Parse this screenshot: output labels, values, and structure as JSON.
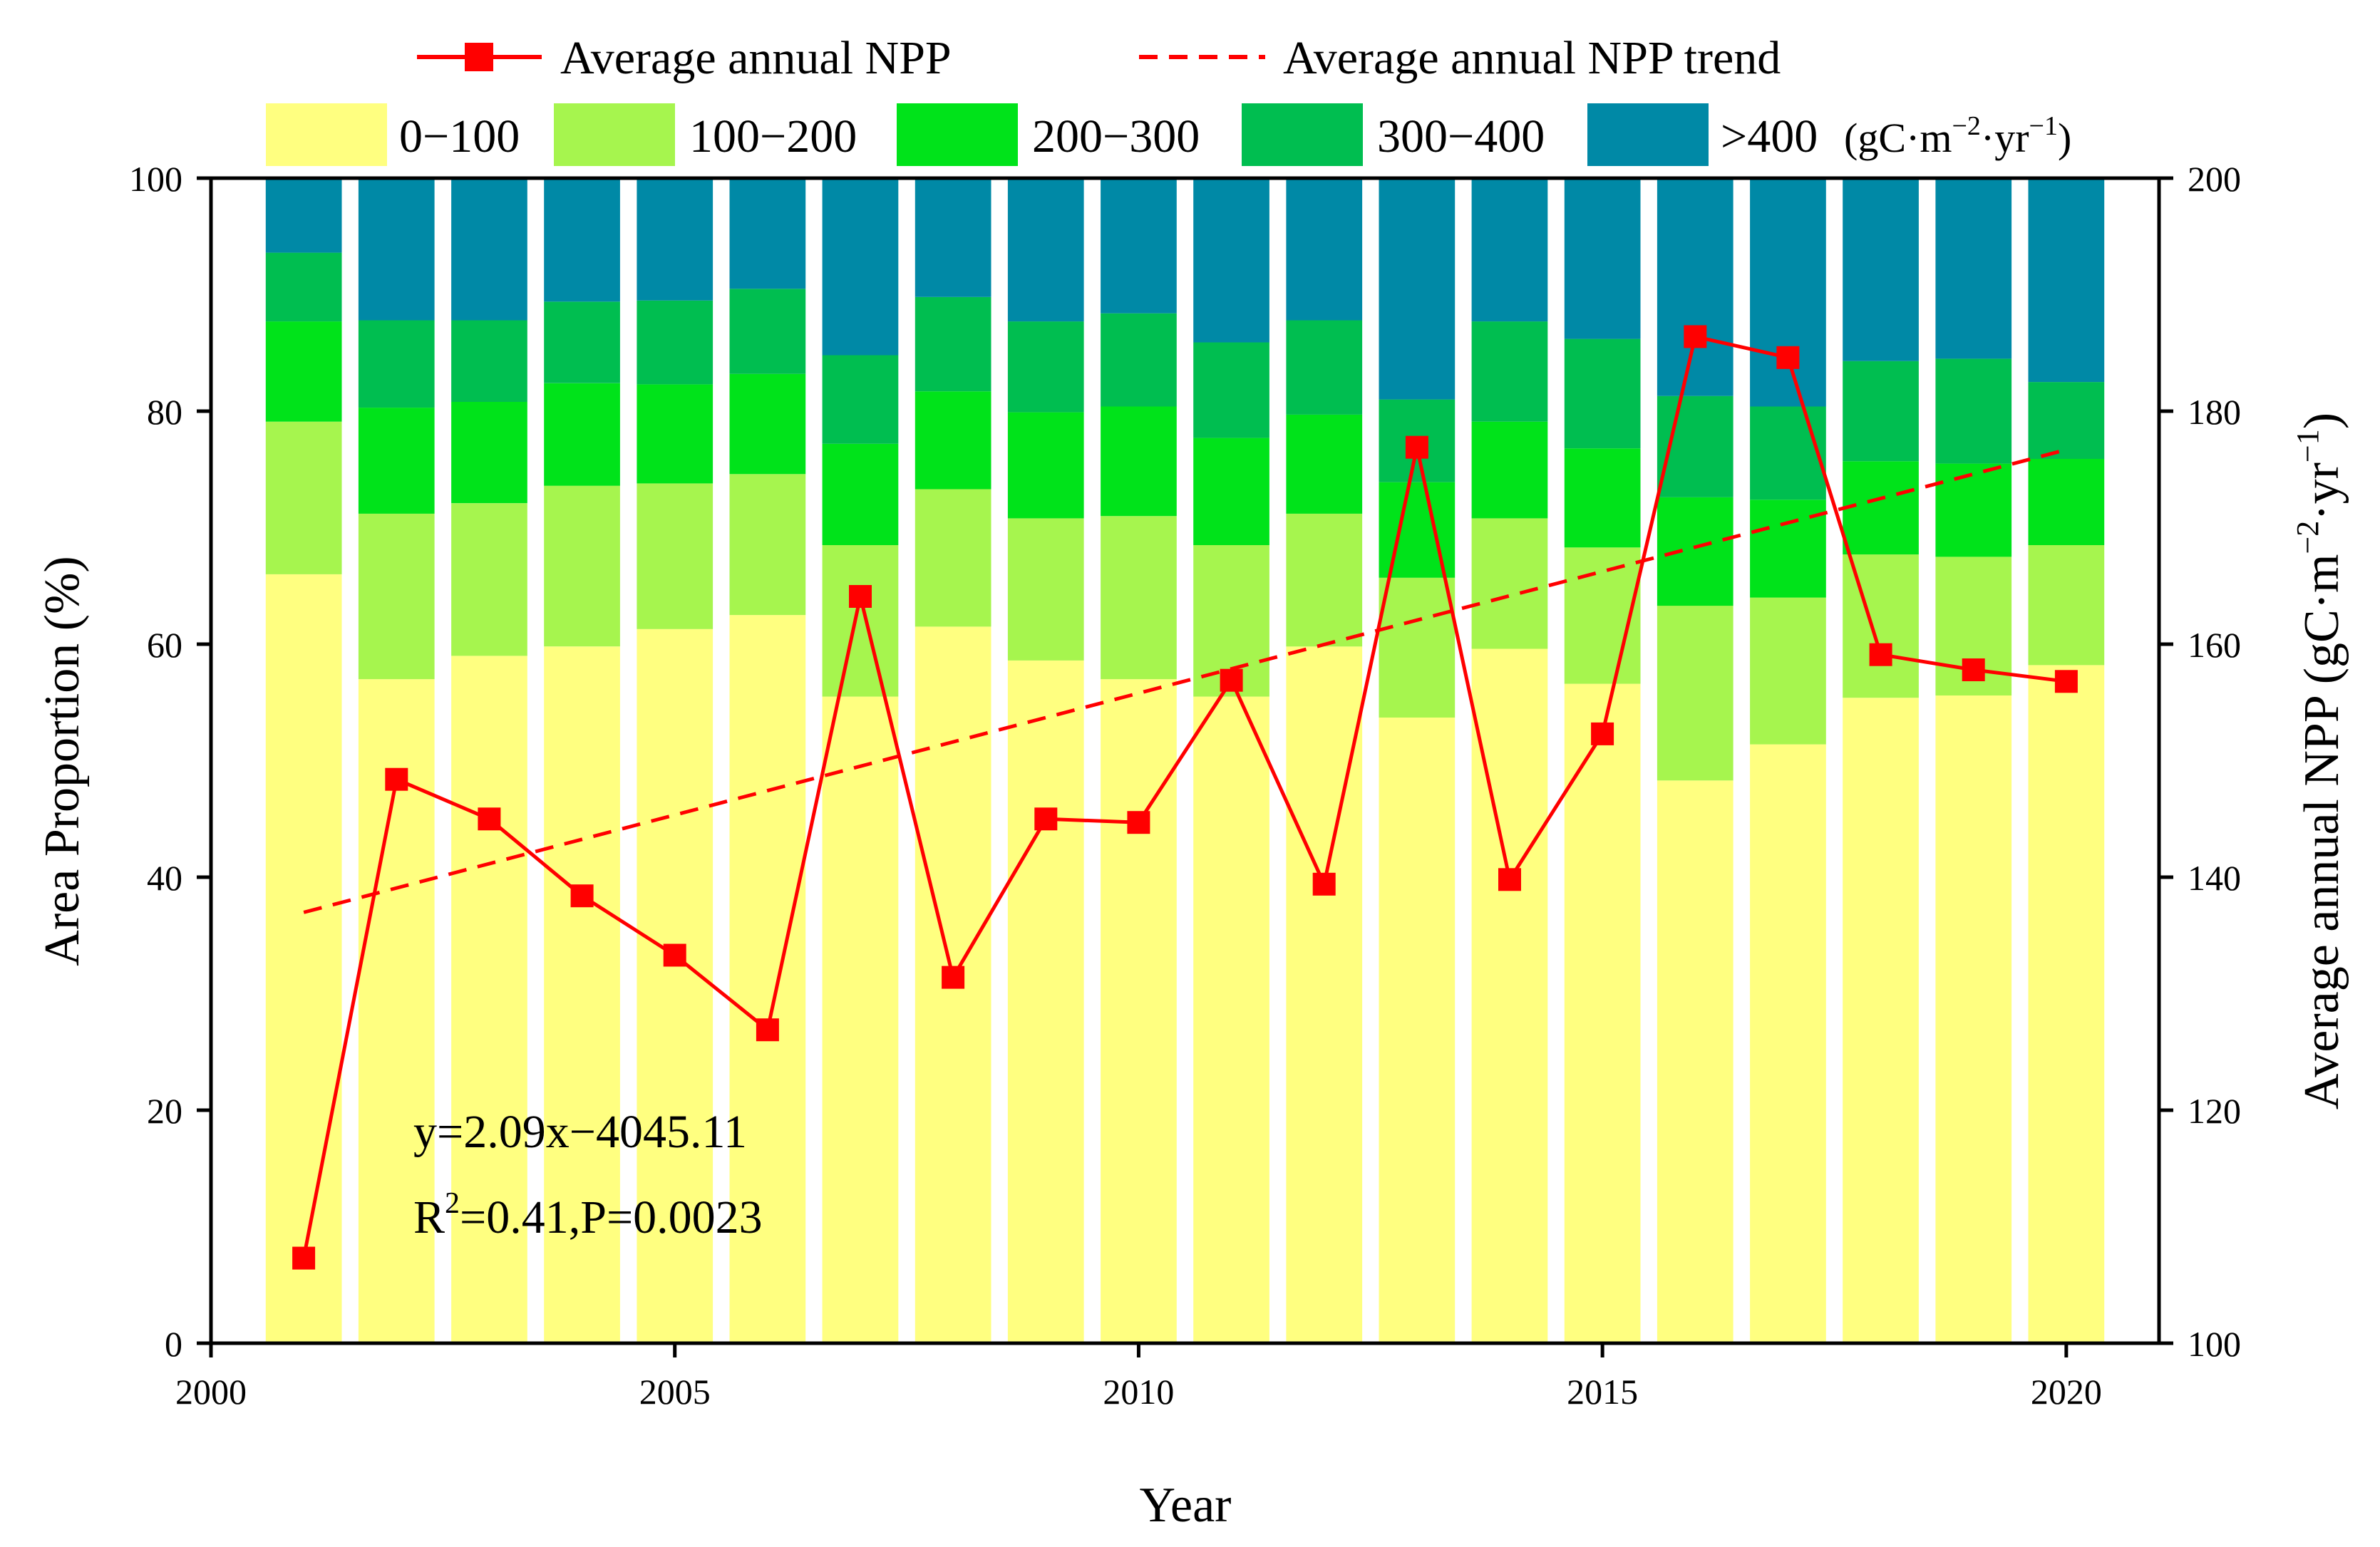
{
  "chart_data": {
    "type": "bar+line",
    "xlabel": "Year",
    "ylabel_left": "Area Proportion (%)",
    "ylabel_right": {
      "text": "Average annual NPP",
      "unit_prefix": "gC·m",
      "unit_exp1": "−2",
      "unit_mid": "·yr",
      "unit_exp2": "−1"
    },
    "xlim": [
      2000,
      2021
    ],
    "x_ticks": [
      2000,
      2005,
      2010,
      2015,
      2020
    ],
    "ylim_left": [
      0,
      100
    ],
    "y_ticks_left": [
      0,
      20,
      40,
      60,
      80,
      100
    ],
    "ylim_right": [
      100,
      200
    ],
    "y_ticks_right": [
      100,
      120,
      140,
      160,
      180,
      200
    ],
    "years": [
      2001,
      2002,
      2003,
      2004,
      2005,
      2006,
      2007,
      2008,
      2009,
      2010,
      2011,
      2012,
      2013,
      2014,
      2015,
      2016,
      2017,
      2018,
      2019,
      2020
    ],
    "bar_series": [
      {
        "name": "0−100",
        "color": "#FFFF80",
        "values": [
          66.0,
          57.0,
          59.0,
          59.8,
          61.3,
          62.5,
          55.5,
          61.5,
          58.6,
          57.0,
          55.5,
          59.8,
          53.7,
          59.6,
          56.6,
          48.3,
          51.4,
          55.4,
          55.6,
          58.2
        ]
      },
      {
        "name": "100−200",
        "color": "#A6F54E",
        "values": [
          13.1,
          14.2,
          13.1,
          13.8,
          12.5,
          12.1,
          13.0,
          11.8,
          12.2,
          14.0,
          13.0,
          11.4,
          12.0,
          11.2,
          11.7,
          15.0,
          12.6,
          12.3,
          11.9,
          10.3
        ]
      },
      {
        "name": "200−300",
        "color": "#00E31A",
        "values": [
          8.6,
          9.1,
          8.7,
          8.8,
          8.5,
          8.6,
          8.7,
          8.4,
          9.1,
          9.4,
          9.2,
          8.5,
          8.2,
          8.3,
          8.5,
          9.3,
          8.4,
          8.0,
          8.0,
          7.4
        ]
      },
      {
        "name": "300−400",
        "color": "#00BE50",
        "values": [
          5.9,
          7.5,
          7.0,
          7.0,
          7.2,
          7.3,
          7.6,
          8.1,
          7.8,
          8.0,
          8.2,
          8.1,
          7.1,
          8.6,
          9.4,
          8.7,
          8.0,
          8.6,
          9.0,
          6.6
        ]
      },
      {
        "name": ">400",
        "color": "#0089A6",
        "values": [
          6.4,
          12.2,
          12.2,
          10.6,
          10.5,
          9.5,
          15.2,
          10.2,
          12.3,
          11.6,
          14.1,
          12.2,
          19.0,
          12.3,
          13.8,
          18.7,
          19.6,
          15.7,
          15.5,
          17.5
        ]
      }
    ],
    "bar_unit_label": "(gC·m−2·yr−1)",
    "line_series": {
      "name": "Average annual NPP",
      "color": "#FF0000",
      "axis": "right",
      "values": [
        107.3,
        148.4,
        145.0,
        138.4,
        133.3,
        126.9,
        164.1,
        131.4,
        145.0,
        144.7,
        156.9,
        139.4,
        176.9,
        139.8,
        152.3,
        186.4,
        184.6,
        159.1,
        157.8,
        156.8
      ]
    },
    "trend": {
      "name": "Average annual NPP trend",
      "color": "#FF0000",
      "style": "dashed",
      "slope": 2.09,
      "intercept": -4045.11,
      "equation": "y=2.09x−4045.11",
      "r2_label": "R",
      "r2_exp": "2",
      "r2_rest": "=0.41,P=0.0023"
    },
    "legend_placement": "top"
  }
}
